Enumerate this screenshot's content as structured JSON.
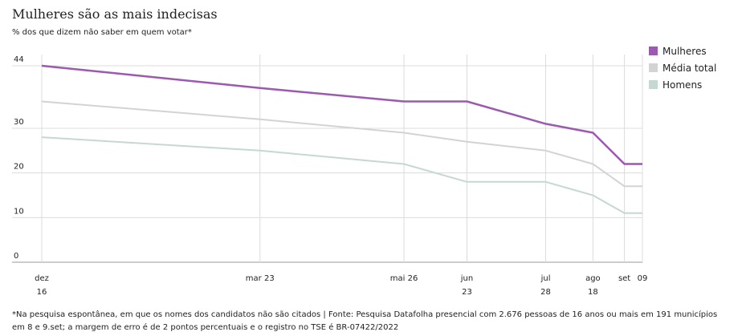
{
  "header": {
    "title": "Mulheres são as mais indecisas",
    "subtitle": "% dos que dizem não saber em quem votar*"
  },
  "footnote": "*Na pesquisa espontânea, em que os nomes dos candidatos não são citados | Fonte: Pesquisa Datafolha presencial com 2.676 pessoas de 16 anos ou mais em 191 municípios em 8 e 9.set; a margem de erro é de 2 pontos percentuais e o registro no TSE é BR-07422/2022",
  "chart_data": {
    "type": "line",
    "title": "Mulheres são as mais indecisas",
    "subtitle": "% dos que dizem não saber em quem votar*",
    "x": [
      "2021-12-16",
      "2022-03-23",
      "2022-05-26",
      "2022-06-23",
      "2022-07-28",
      "2022-08-18",
      "2022-09-01",
      "2022-09-09"
    ],
    "x_tick_labels": [
      {
        "date": "2021-12-16",
        "top": "dez",
        "bottom": "16"
      },
      {
        "date": "2022-03-23",
        "top": "mar 23",
        "bottom": ""
      },
      {
        "date": "2022-05-26",
        "top": "mai 26",
        "bottom": ""
      },
      {
        "date": "2022-06-23",
        "top": "jun",
        "bottom": "23"
      },
      {
        "date": "2022-07-28",
        "top": "jul",
        "bottom": "28"
      },
      {
        "date": "2022-08-18",
        "top": "ago",
        "bottom": "18"
      },
      {
        "date": "2022-09-01",
        "top": "set",
        "bottom": ""
      },
      {
        "date": "2022-09-09",
        "top": "09",
        "bottom": ""
      }
    ],
    "y_ticks": [
      0,
      10,
      20,
      30,
      44
    ],
    "ylim": [
      0,
      44
    ],
    "grid": true,
    "legend_position": "right",
    "series": [
      {
        "name": "Mulheres",
        "color": "#9b59b0",
        "values": [
          44,
          39,
          36,
          36,
          31,
          29,
          22,
          22
        ]
      },
      {
        "name": "Média total",
        "color": "#d3d3d3",
        "values": [
          36,
          32,
          29,
          27,
          25,
          22,
          17,
          17
        ]
      },
      {
        "name": "Homens",
        "color": "#c6d8d2",
        "values": [
          28,
          25,
          22,
          18,
          18,
          15,
          11,
          11
        ]
      }
    ]
  }
}
